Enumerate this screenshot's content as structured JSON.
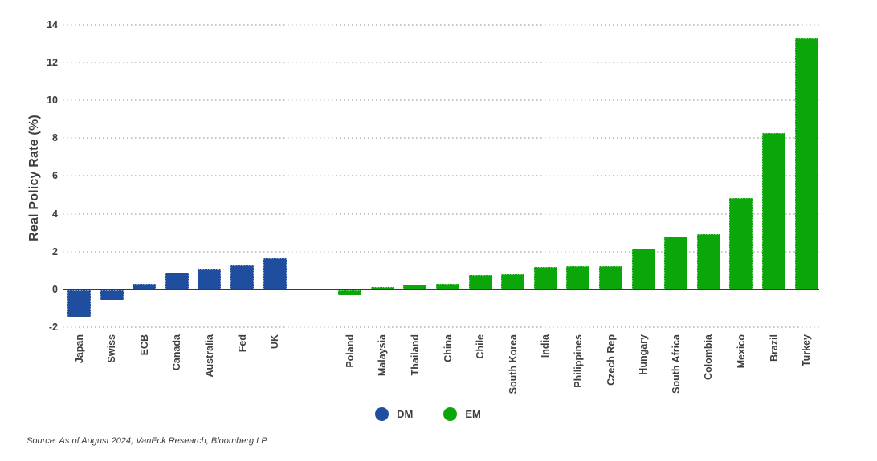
{
  "chart_data": {
    "type": "bar",
    "title": "",
    "ylabel": "Real Policy Rate (%)",
    "xlabel": "",
    "ylim": [
      -2,
      14
    ],
    "yticks": [
      14,
      12,
      10,
      8,
      6,
      4,
      2,
      0,
      -2
    ],
    "grid": "horizontal-dotted",
    "legend_position": "bottom-center",
    "categories": [
      "Japan",
      "Swiss",
      "ECB",
      "Canada",
      "Australia",
      "Fed",
      "UK",
      "Poland",
      "Malaysia",
      "Thailand",
      "China",
      "Chile",
      "South Korea",
      "India",
      "Philippines",
      "Czech Rep",
      "Hungary",
      "South Africa",
      "Colombia",
      "Mexico",
      "Brazil",
      "Turkey"
    ],
    "groups": [
      {
        "name": "DM",
        "color": "#1F4E9E",
        "bars": [
          {
            "label": "Japan",
            "value": -1.4
          },
          {
            "label": "Swiss",
            "value": -0.5
          },
          {
            "label": "ECB",
            "value": 0.25
          },
          {
            "label": "Canada",
            "value": 0.85
          },
          {
            "label": "Australia",
            "value": 1.0
          },
          {
            "label": "Fed",
            "value": 1.25
          },
          {
            "label": "UK",
            "value": 1.6
          }
        ]
      },
      {
        "name": "EM",
        "color": "#0AA60A",
        "bars": [
          {
            "label": "Poland",
            "value": -0.25
          },
          {
            "label": "Malaysia",
            "value": 0.1
          },
          {
            "label": "Thailand",
            "value": 0.2
          },
          {
            "label": "China",
            "value": 0.25
          },
          {
            "label": "Chile",
            "value": 0.7
          },
          {
            "label": "South Korea",
            "value": 0.75
          },
          {
            "label": "India",
            "value": 1.15
          },
          {
            "label": "Philippines",
            "value": 1.2
          },
          {
            "label": "Czech Rep",
            "value": 1.2
          },
          {
            "label": "Hungary",
            "value": 2.1
          },
          {
            "label": "South Africa",
            "value": 2.75
          },
          {
            "label": "Colombia",
            "value": 2.9
          },
          {
            "label": "Mexico",
            "value": 4.8
          },
          {
            "label": "Brazil",
            "value": 8.2
          },
          {
            "label": "Turkey",
            "value": 13.2
          }
        ]
      }
    ]
  },
  "legend": {
    "items": [
      {
        "label": "DM",
        "color": "#1F4E9E"
      },
      {
        "label": "EM",
        "color": "#0AA60A"
      }
    ]
  },
  "source_note": "Source: As of August 2024, VanEck Research, Bloomberg LP",
  "colors": {
    "dm_blue": "#1F4E9E",
    "em_green": "#0AA60A",
    "gridline": "#c6c6c6",
    "axis_line": "#3a3a3a",
    "text": "#3d3d3d"
  }
}
